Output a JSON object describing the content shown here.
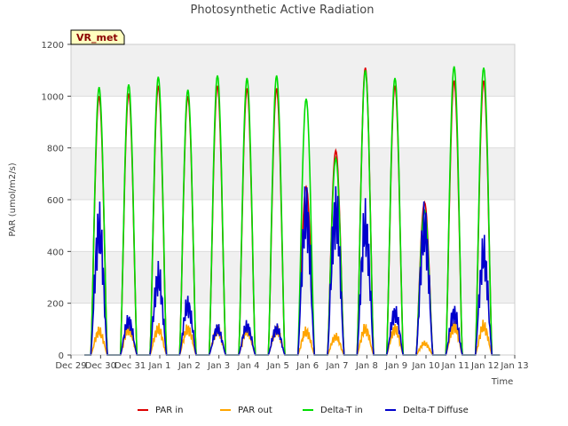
{
  "chart_data": {
    "type": "line",
    "title": "Photosynthetic Active Radiation",
    "xlabel": "Time",
    "ylabel": "PAR (umol/m2/s)",
    "ylim": [
      0,
      1200
    ],
    "xlim": [
      0,
      15
    ],
    "yticks": [
      0,
      200,
      400,
      600,
      800,
      1000,
      1200
    ],
    "xticks": [
      {
        "value": 0,
        "label": "Dec 29"
      },
      {
        "value": 1,
        "label": "Dec 30"
      },
      {
        "value": 2,
        "label": "Dec 31"
      },
      {
        "value": 3,
        "label": "Jan 1"
      },
      {
        "value": 4,
        "label": "Jan 2"
      },
      {
        "value": 5,
        "label": "Jan 3"
      },
      {
        "value": 6,
        "label": "Jan 4"
      },
      {
        "value": 7,
        "label": "Jan 5"
      },
      {
        "value": 8,
        "label": "Jan 6"
      },
      {
        "value": 9,
        "label": "Jan 7"
      },
      {
        "value": 10,
        "label": "Jan 8"
      },
      {
        "value": 11,
        "label": "Jan 9"
      },
      {
        "value": 12,
        "label": "Jan 10"
      },
      {
        "value": 13,
        "label": "Jan 11"
      },
      {
        "value": 14,
        "label": "Jan 12"
      },
      {
        "value": 15,
        "label": "Jan 13"
      }
    ],
    "grid": true,
    "banded_background": true,
    "badge": "VR_met",
    "day_peak_units": "daily peak value per series, day offset from Dec 29",
    "series": [
      {
        "name": "PAR in",
        "color": "#dd0000",
        "days": [
          0.95,
          1.95,
          2.95,
          3.95,
          4.95,
          5.95,
          6.95,
          7.95,
          8.95,
          9.95,
          10.95,
          11.95,
          12.95,
          13.95
        ],
        "peaks": [
          1000,
          1010,
          1040,
          1000,
          1040,
          1030,
          1030,
          650,
          790,
          1110,
          1040,
          590,
          1060,
          1060
        ]
      },
      {
        "name": "PAR out",
        "color": "#ffa500",
        "days": [
          0.95,
          1.95,
          2.95,
          3.95,
          4.95,
          5.95,
          6.95,
          7.95,
          8.95,
          9.95,
          10.95,
          11.95,
          12.95,
          13.95
        ],
        "peaks": [
          90,
          100,
          100,
          100,
          95,
          95,
          95,
          90,
          70,
          100,
          100,
          45,
          110,
          110
        ]
      },
      {
        "name": "Delta-T in",
        "color": "#00dd00",
        "days": [
          0.95,
          1.95,
          2.95,
          3.95,
          4.95,
          5.95,
          6.95,
          7.95,
          8.95,
          9.95,
          10.95,
          11.95,
          12.95,
          13.95
        ],
        "peaks": [
          1035,
          1045,
          1075,
          1025,
          1080,
          1070,
          1080,
          990,
          760,
          1100,
          1070,
          560,
          1115,
          1110
        ]
      },
      {
        "name": "Delta-T Diffuse",
        "color": "#0000cc",
        "days": [
          0.95,
          1.95,
          2.95,
          3.95,
          4.95,
          5.95,
          6.95,
          7.95,
          8.95,
          9.95,
          10.95,
          11.95,
          12.95,
          13.95
        ],
        "peaks": [
          480,
          130,
          295,
          190,
          100,
          110,
          100,
          545,
          545,
          490,
          160,
          480,
          160,
          380
        ]
      }
    ]
  }
}
